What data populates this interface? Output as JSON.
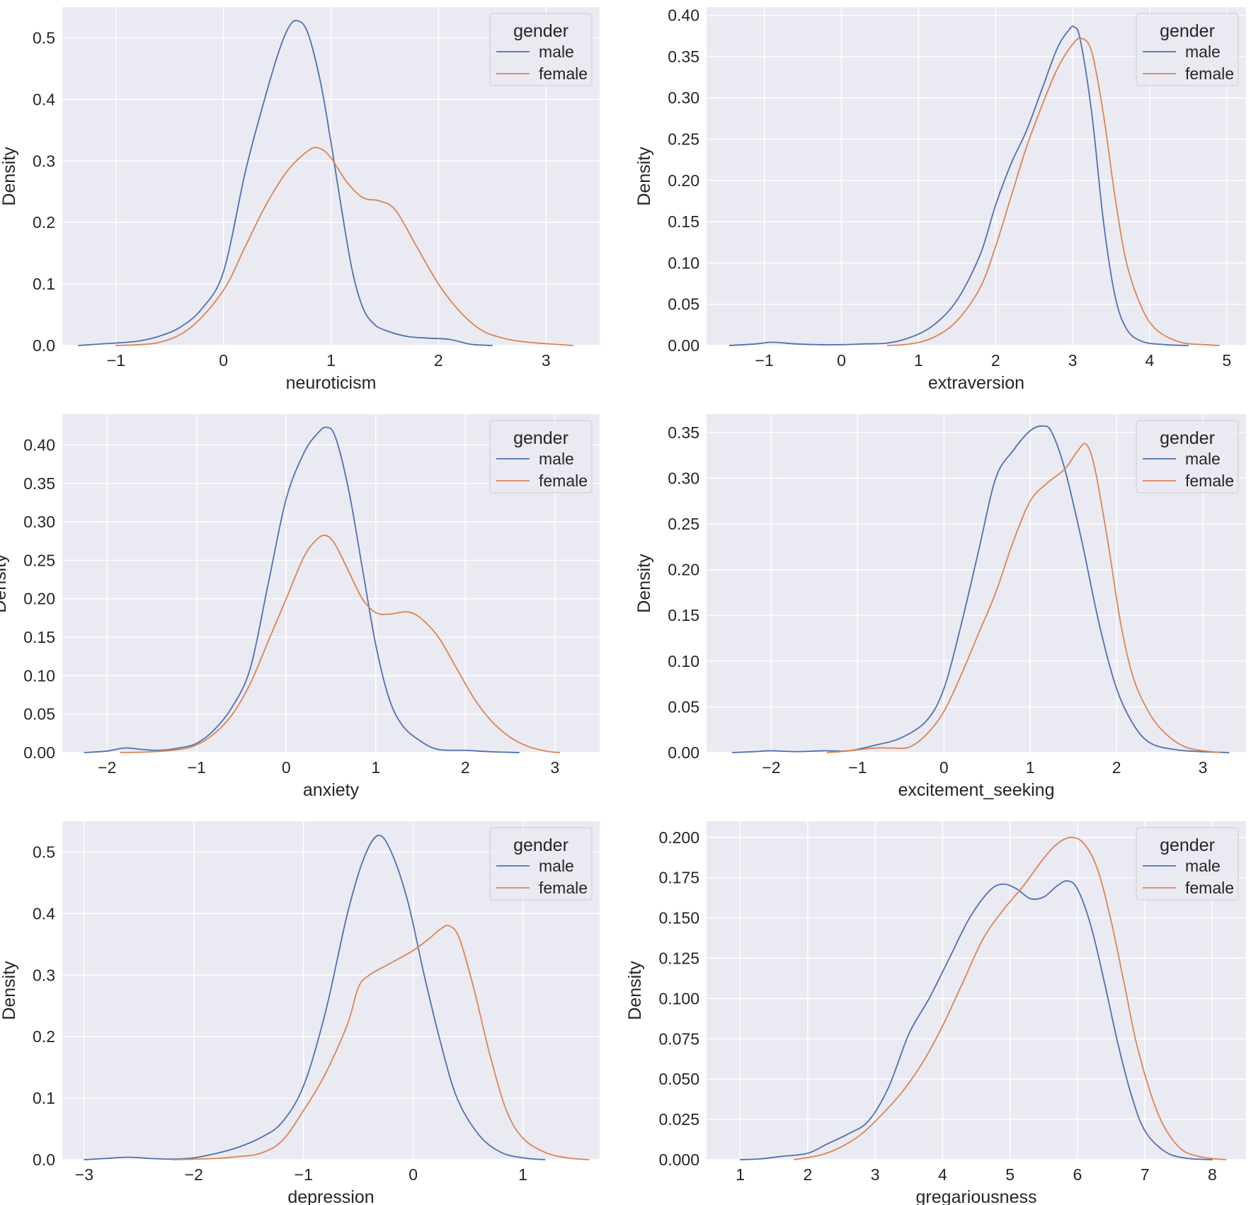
{
  "chart_data": [
    {
      "type": "line",
      "xlabel": "neuroticism",
      "ylabel": "Density",
      "xlim": [
        -1.5,
        3.5
      ],
      "ylim": [
        0,
        0.55
      ],
      "xticks": [
        -1,
        0,
        1,
        2,
        3
      ],
      "xtick_labels": [
        "−1",
        "0",
        "1",
        "2",
        "3"
      ],
      "yticks": [
        0.0,
        0.1,
        0.2,
        0.3,
        0.4,
        0.5
      ],
      "ytick_labels": [
        "0.0",
        "0.1",
        "0.2",
        "0.3",
        "0.4",
        "0.5"
      ],
      "grid": true,
      "legend": {
        "title": "gender",
        "position": "top-right",
        "entries": [
          "male",
          "female"
        ]
      },
      "series": [
        {
          "name": "male",
          "color": "#4c72b0",
          "x": [
            -1.35,
            -1.1,
            -1.0,
            -0.8,
            -0.6,
            -0.4,
            -0.2,
            0.0,
            0.2,
            0.35,
            0.5,
            0.6,
            0.68,
            0.78,
            0.9,
            1.0,
            1.1,
            1.2,
            1.3,
            1.4,
            1.5,
            1.7,
            1.9,
            2.1,
            2.3,
            2.5
          ],
          "y": [
            0.0,
            0.003,
            0.004,
            0.007,
            0.015,
            0.03,
            0.06,
            0.12,
            0.28,
            0.38,
            0.47,
            0.515,
            0.528,
            0.51,
            0.43,
            0.33,
            0.22,
            0.12,
            0.06,
            0.035,
            0.025,
            0.015,
            0.012,
            0.01,
            0.002,
            0.0
          ]
        },
        {
          "name": "female",
          "color": "#dd8452",
          "x": [
            -1.0,
            -0.6,
            -0.3,
            0.0,
            0.2,
            0.4,
            0.6,
            0.8,
            0.9,
            1.0,
            1.15,
            1.3,
            1.45,
            1.6,
            1.8,
            2.0,
            2.2,
            2.4,
            2.6,
            2.8,
            3.0,
            3.25
          ],
          "y": [
            0.0,
            0.005,
            0.03,
            0.09,
            0.16,
            0.23,
            0.285,
            0.318,
            0.32,
            0.305,
            0.265,
            0.24,
            0.235,
            0.22,
            0.16,
            0.1,
            0.055,
            0.025,
            0.012,
            0.006,
            0.003,
            0.0
          ]
        }
      ]
    },
    {
      "type": "line",
      "xlabel": "extraversion",
      "ylabel": "Density",
      "xlim": [
        -1.75,
        5.25
      ],
      "ylim": [
        0,
        0.41
      ],
      "xticks": [
        -1,
        0,
        1,
        2,
        3,
        4,
        5
      ],
      "xtick_labels": [
        "−1",
        "0",
        "1",
        "2",
        "3",
        "4",
        "5"
      ],
      "yticks": [
        0.0,
        0.05,
        0.1,
        0.15,
        0.2,
        0.25,
        0.3,
        0.35,
        0.4
      ],
      "ytick_labels": [
        "0.00",
        "0.05",
        "0.10",
        "0.15",
        "0.20",
        "0.25",
        "0.30",
        "0.35",
        "0.40"
      ],
      "grid": true,
      "legend": {
        "title": "gender",
        "position": "top-right",
        "entries": [
          "male",
          "female"
        ]
      },
      "series": [
        {
          "name": "male",
          "color": "#4c72b0",
          "x": [
            -1.45,
            -1.1,
            -0.9,
            -0.6,
            -0.3,
            0.0,
            0.3,
            0.6,
            0.9,
            1.2,
            1.5,
            1.8,
            2.0,
            2.2,
            2.4,
            2.6,
            2.8,
            2.95,
            3.02,
            3.1,
            3.25,
            3.4,
            3.55,
            3.7,
            3.9,
            4.2,
            4.5
          ],
          "y": [
            0.0,
            0.002,
            0.004,
            0.002,
            0.001,
            0.001,
            0.002,
            0.003,
            0.01,
            0.025,
            0.055,
            0.11,
            0.17,
            0.22,
            0.26,
            0.31,
            0.36,
            0.382,
            0.386,
            0.37,
            0.28,
            0.15,
            0.06,
            0.02,
            0.005,
            0.001,
            0.0
          ]
        },
        {
          "name": "female",
          "color": "#dd8452",
          "x": [
            0.6,
            0.9,
            1.2,
            1.5,
            1.8,
            2.0,
            2.2,
            2.4,
            2.6,
            2.8,
            3.0,
            3.12,
            3.25,
            3.4,
            3.55,
            3.7,
            3.9,
            4.1,
            4.4,
            4.7,
            4.9
          ],
          "y": [
            0.0,
            0.002,
            0.01,
            0.03,
            0.07,
            0.12,
            0.18,
            0.24,
            0.29,
            0.335,
            0.365,
            0.372,
            0.355,
            0.28,
            0.18,
            0.1,
            0.045,
            0.018,
            0.004,
            0.001,
            0.0
          ]
        }
      ]
    },
    {
      "type": "line",
      "xlabel": "anxiety",
      "ylabel": "Density",
      "xlim": [
        -2.5,
        3.5
      ],
      "ylim": [
        0,
        0.44
      ],
      "xticks": [
        -2,
        -1,
        0,
        1,
        2,
        3
      ],
      "xtick_labels": [
        "−2",
        "−1",
        "0",
        "1",
        "2",
        "3"
      ],
      "yticks": [
        0.0,
        0.05,
        0.1,
        0.15,
        0.2,
        0.25,
        0.3,
        0.35,
        0.4
      ],
      "ytick_labels": [
        "0.00",
        "0.05",
        "0.10",
        "0.15",
        "0.20",
        "0.25",
        "0.30",
        "0.35",
        "0.40"
      ],
      "grid": true,
      "legend": {
        "title": "gender",
        "position": "top-right",
        "entries": [
          "male",
          "female"
        ]
      },
      "series": [
        {
          "name": "male",
          "color": "#4c72b0",
          "x": [
            -2.25,
            -2.0,
            -1.8,
            -1.6,
            -1.4,
            -1.2,
            -1.0,
            -0.8,
            -0.6,
            -0.4,
            -0.2,
            0.0,
            0.2,
            0.35,
            0.45,
            0.55,
            0.7,
            0.85,
            1.0,
            1.15,
            1.3,
            1.5,
            1.7,
            2.0,
            2.3,
            2.6
          ],
          "y": [
            0.0,
            0.002,
            0.006,
            0.004,
            0.003,
            0.006,
            0.012,
            0.03,
            0.06,
            0.11,
            0.22,
            0.33,
            0.39,
            0.415,
            0.423,
            0.41,
            0.34,
            0.24,
            0.14,
            0.07,
            0.035,
            0.015,
            0.004,
            0.003,
            0.001,
            0.0
          ]
        },
        {
          "name": "female",
          "color": "#dd8452",
          "x": [
            -1.85,
            -1.5,
            -1.2,
            -1.0,
            -0.8,
            -0.6,
            -0.4,
            -0.2,
            0.0,
            0.2,
            0.35,
            0.45,
            0.55,
            0.7,
            0.85,
            1.0,
            1.15,
            1.35,
            1.5,
            1.7,
            1.9,
            2.1,
            2.3,
            2.5,
            2.7,
            2.9,
            3.05
          ],
          "y": [
            0.0,
            0.001,
            0.004,
            0.01,
            0.025,
            0.05,
            0.09,
            0.145,
            0.2,
            0.255,
            0.278,
            0.282,
            0.27,
            0.235,
            0.2,
            0.182,
            0.18,
            0.183,
            0.175,
            0.15,
            0.11,
            0.07,
            0.04,
            0.02,
            0.008,
            0.002,
            0.0
          ]
        }
      ]
    },
    {
      "type": "line",
      "xlabel": "excitement_seeking",
      "ylabel": "Density",
      "xlim": [
        -2.75,
        3.5
      ],
      "ylim": [
        0,
        0.37
      ],
      "xticks": [
        -2,
        -1,
        0,
        1,
        2,
        3
      ],
      "xtick_labels": [
        "−2",
        "−1",
        "0",
        "1",
        "2",
        "3"
      ],
      "yticks": [
        0.0,
        0.05,
        0.1,
        0.15,
        0.2,
        0.25,
        0.3,
        0.35
      ],
      "ytick_labels": [
        "0.00",
        "0.05",
        "0.10",
        "0.15",
        "0.20",
        "0.25",
        "0.30",
        "0.35"
      ],
      "grid": true,
      "legend": {
        "title": "gender",
        "position": "top-right",
        "entries": [
          "male",
          "female"
        ]
      },
      "series": [
        {
          "name": "male",
          "color": "#4c72b0",
          "x": [
            -2.45,
            -2.2,
            -2.0,
            -1.7,
            -1.4,
            -1.1,
            -0.8,
            -0.5,
            -0.2,
            0.0,
            0.2,
            0.4,
            0.6,
            0.8,
            1.0,
            1.15,
            1.25,
            1.4,
            1.6,
            1.8,
            2.0,
            2.2,
            2.4,
            2.7,
            3.0,
            3.3
          ],
          "y": [
            0.0,
            0.001,
            0.002,
            0.001,
            0.002,
            0.002,
            0.008,
            0.016,
            0.035,
            0.07,
            0.14,
            0.22,
            0.3,
            0.33,
            0.352,
            0.357,
            0.35,
            0.31,
            0.23,
            0.14,
            0.07,
            0.03,
            0.01,
            0.003,
            0.001,
            0.0
          ]
        },
        {
          "name": "female",
          "color": "#dd8452",
          "x": [
            -1.35,
            -1.1,
            -0.8,
            -0.6,
            -0.4,
            -0.2,
            0.0,
            0.2,
            0.4,
            0.6,
            0.8,
            1.0,
            1.2,
            1.4,
            1.55,
            1.65,
            1.75,
            1.9,
            2.05,
            2.2,
            2.4,
            2.6,
            2.8,
            3.0,
            3.2
          ],
          "y": [
            0.0,
            0.002,
            0.005,
            0.005,
            0.006,
            0.02,
            0.045,
            0.085,
            0.13,
            0.175,
            0.23,
            0.275,
            0.295,
            0.31,
            0.33,
            0.337,
            0.31,
            0.23,
            0.14,
            0.08,
            0.04,
            0.018,
            0.006,
            0.002,
            0.0
          ]
        }
      ]
    },
    {
      "type": "line",
      "xlabel": "depression",
      "ylabel": "Density",
      "xlim": [
        -3.2,
        1.7
      ],
      "ylim": [
        0,
        0.55
      ],
      "xticks": [
        -3,
        -2,
        -1,
        0,
        1
      ],
      "xtick_labels": [
        "−3",
        "−2",
        "−1",
        "0",
        "1"
      ],
      "yticks": [
        0.0,
        0.1,
        0.2,
        0.3,
        0.4,
        0.5
      ],
      "ytick_labels": [
        "0.0",
        "0.1",
        "0.2",
        "0.3",
        "0.4",
        "0.5"
      ],
      "grid": true,
      "legend": {
        "title": "gender",
        "position": "top-right",
        "entries": [
          "male",
          "female"
        ]
      },
      "series": [
        {
          "name": "male",
          "color": "#4c72b0",
          "x": [
            -3.0,
            -2.8,
            -2.6,
            -2.4,
            -2.2,
            -2.0,
            -1.8,
            -1.6,
            -1.4,
            -1.2,
            -1.0,
            -0.8,
            -0.6,
            -0.45,
            -0.32,
            -0.2,
            -0.05,
            0.1,
            0.25,
            0.4,
            0.6,
            0.8,
            1.0,
            1.2
          ],
          "y": [
            0.0,
            0.002,
            0.004,
            0.002,
            0.001,
            0.003,
            0.01,
            0.02,
            0.035,
            0.06,
            0.12,
            0.24,
            0.4,
            0.49,
            0.527,
            0.5,
            0.42,
            0.3,
            0.19,
            0.1,
            0.04,
            0.012,
            0.003,
            0.0
          ]
        },
        {
          "name": "female",
          "color": "#dd8452",
          "x": [
            -2.2,
            -1.8,
            -1.6,
            -1.4,
            -1.2,
            -1.0,
            -0.8,
            -0.6,
            -0.5,
            -0.4,
            -0.2,
            0.0,
            0.15,
            0.25,
            0.33,
            0.42,
            0.55,
            0.7,
            0.85,
            1.0,
            1.2,
            1.4,
            1.6
          ],
          "y": [
            0.0,
            0.002,
            0.005,
            0.01,
            0.03,
            0.08,
            0.14,
            0.22,
            0.28,
            0.3,
            0.32,
            0.34,
            0.36,
            0.375,
            0.38,
            0.36,
            0.28,
            0.17,
            0.08,
            0.035,
            0.012,
            0.003,
            0.0
          ]
        }
      ]
    },
    {
      "type": "line",
      "xlabel": "gregariousness",
      "ylabel": "Density",
      "xlim": [
        0.5,
        8.5
      ],
      "ylim": [
        0,
        0.21
      ],
      "xticks": [
        1,
        2,
        3,
        4,
        5,
        6,
        7,
        8
      ],
      "xtick_labels": [
        "1",
        "2",
        "3",
        "4",
        "5",
        "6",
        "7",
        "8"
      ],
      "yticks": [
        0.0,
        0.025,
        0.05,
        0.075,
        0.1,
        0.125,
        0.15,
        0.175,
        0.2
      ],
      "ytick_labels": [
        "0.000",
        "0.025",
        "0.050",
        "0.075",
        "0.100",
        "0.125",
        "0.150",
        "0.175",
        "0.200"
      ],
      "grid": true,
      "legend": {
        "title": "gender",
        "position": "top-right",
        "entries": [
          "male",
          "female"
        ]
      },
      "series": [
        {
          "name": "male",
          "color": "#4c72b0",
          "x": [
            1.0,
            1.3,
            1.6,
            2.0,
            2.3,
            2.6,
            2.9,
            3.2,
            3.5,
            3.8,
            4.1,
            4.4,
            4.7,
            4.9,
            5.1,
            5.3,
            5.5,
            5.7,
            5.85,
            6.0,
            6.2,
            6.4,
            6.6,
            6.8,
            7.0,
            7.3,
            7.6,
            8.0
          ],
          "y": [
            0.0,
            0.0005,
            0.002,
            0.004,
            0.01,
            0.016,
            0.024,
            0.045,
            0.078,
            0.1,
            0.125,
            0.15,
            0.167,
            0.171,
            0.168,
            0.162,
            0.163,
            0.17,
            0.173,
            0.168,
            0.145,
            0.11,
            0.072,
            0.04,
            0.018,
            0.005,
            0.001,
            0.0
          ]
        },
        {
          "name": "female",
          "color": "#dd8452",
          "x": [
            1.8,
            2.2,
            2.5,
            2.8,
            3.1,
            3.4,
            3.7,
            4.0,
            4.3,
            4.6,
            4.9,
            5.2,
            5.5,
            5.7,
            5.9,
            6.1,
            6.3,
            6.5,
            6.7,
            6.9,
            7.2,
            7.5,
            7.8,
            8.2
          ],
          "y": [
            0.0,
            0.003,
            0.008,
            0.016,
            0.028,
            0.042,
            0.06,
            0.083,
            0.11,
            0.137,
            0.155,
            0.17,
            0.187,
            0.196,
            0.2,
            0.196,
            0.18,
            0.148,
            0.108,
            0.068,
            0.028,
            0.008,
            0.002,
            0.0
          ]
        }
      ]
    }
  ]
}
